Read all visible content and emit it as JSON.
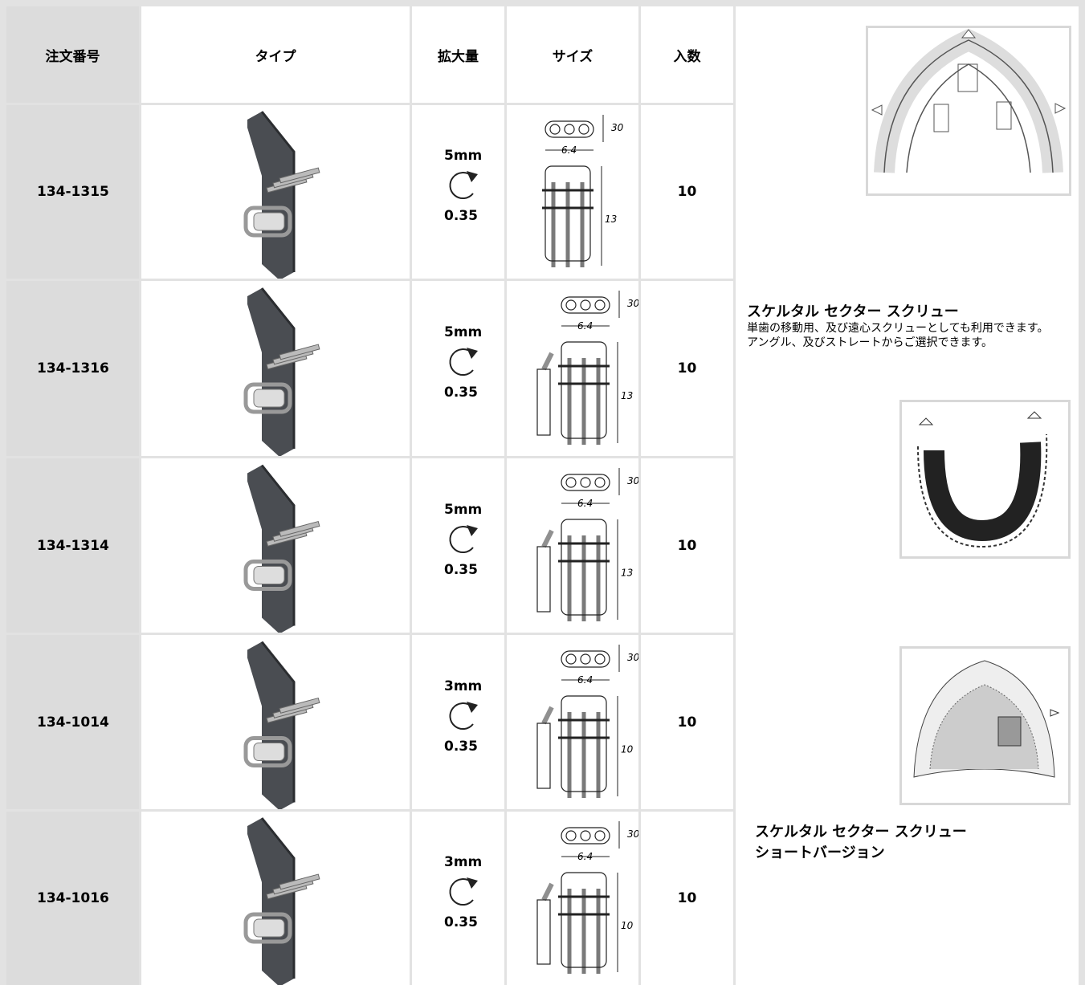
{
  "header": {
    "columns": [
      "注文番号",
      "タイプ",
      "拡大量",
      "サイズ",
      "入数"
    ]
  },
  "rows": [
    {
      "order": "134-1315",
      "expansion": "5mm",
      "step": "0.35",
      "size": {
        "height": "30",
        "width": "6.4",
        "length": "13"
      },
      "quantity": 10
    },
    {
      "order": "134-1316",
      "expansion": "5mm",
      "step": "0.35",
      "size": {
        "height": "30",
        "width": "6.4",
        "length": "13"
      },
      "quantity": 10
    },
    {
      "order": "134-1314",
      "expansion": "5mm",
      "step": "0.35",
      "size": {
        "height": "30",
        "width": "6.4",
        "length": "13"
      },
      "quantity": 10
    },
    {
      "order": "134-1014",
      "expansion": "3mm",
      "step": "0.35",
      "size": {
        "height": "30",
        "width": "6.4",
        "length": "10"
      },
      "quantity": 10
    },
    {
      "order": "134-1016",
      "expansion": "3mm",
      "step": "0.35",
      "size": {
        "height": "30",
        "width": "6.4",
        "length": "10"
      },
      "quantity": 10
    }
  ],
  "descriptions": [
    {
      "title": "スケルタル セクター スクリュー",
      "lines": [
        "単歯の移動用、及び遠心スクリューとしても利用できます。",
        "アングル、及びストレートからご選択できます。"
      ]
    },
    {
      "title": "スケルタル セクター スクリュー",
      "subtitle": "ショートバージョン"
    }
  ]
}
